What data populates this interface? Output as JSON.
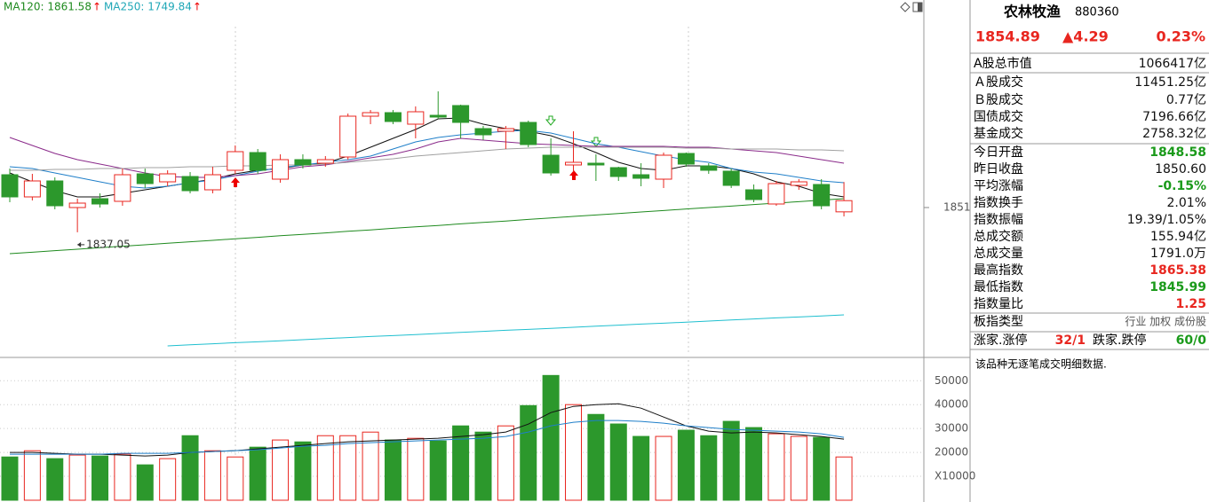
{
  "chart_data": [
    {
      "type": "candlestick",
      "open": [
        1869.5,
        1857,
        1866,
        1851,
        1856,
        1854.5,
        1870,
        1865.5,
        1868.5,
        1861,
        1872,
        1882,
        1867,
        1878,
        1876,
        1879.5,
        1902.5,
        1904.5,
        1898,
        1903,
        1908.5,
        1895.5,
        1894,
        1899,
        1880.5,
        1875,
        1876,
        1873.5,
        1869.5,
        1867,
        1881.5,
        1874.5,
        1871.5,
        1861,
        1853,
        1863.5,
        1864,
        1848.58
      ],
      "high": [
        1873,
        1870,
        1868,
        1856,
        1859,
        1873,
        1873,
        1872,
        1871,
        1874,
        1886,
        1884,
        1881,
        1881,
        1880,
        1904,
        1906,
        1906,
        1908,
        1916.5,
        1909,
        1897,
        1897,
        1900,
        1890,
        1894,
        1881,
        1874,
        1876,
        1882,
        1882,
        1876,
        1873,
        1864,
        1866,
        1867,
        1867,
        1865.38
      ],
      "low": [
        1854,
        1855,
        1850,
        1837.05,
        1851,
        1852,
        1862,
        1863,
        1859,
        1859,
        1870,
        1870,
        1865,
        1873,
        1874,
        1878,
        1898,
        1898,
        1890,
        1901,
        1890,
        1889,
        1884,
        1885,
        1869,
        1871,
        1866,
        1866,
        1863,
        1862,
        1874,
        1870,
        1862,
        1854,
        1852,
        1861,
        1850,
        1845.99
      ],
      "close": [
        1857,
        1866,
        1852,
        1853.5,
        1853,
        1869.5,
        1864.5,
        1870,
        1860.5,
        1869.5,
        1882.5,
        1872,
        1878,
        1875,
        1878,
        1902.5,
        1904.5,
        1899.5,
        1905,
        1902,
        1899,
        1892,
        1895.5,
        1886.5,
        1870.5,
        1876.5,
        1875,
        1868.5,
        1867.5,
        1880.5,
        1875.5,
        1872,
        1863.5,
        1855.5,
        1864.5,
        1865.5,
        1852,
        1854.89
      ],
      "up_color": "#e8261f",
      "down_color": "#2c982c",
      "series": [
        {
          "color": "#111111",
          "values": [
            1870.5,
            1865.5,
            1860.5,
            1857,
            1857,
            1859,
            1861,
            1863,
            1865,
            1867,
            1870,
            1872,
            1873,
            1875,
            1876,
            1880,
            1885,
            1890,
            1895,
            1901,
            1901.5,
            1898,
            1895.5,
            1894,
            1891.5,
            1887,
            1882,
            1876.5,
            1873,
            1872,
            1874.5,
            1874.5,
            1873,
            1870,
            1865.5,
            1863,
            1859,
            1857
          ]
        },
        {
          "color": "#1f7fc9",
          "values": [
            1874,
            1873,
            1870.5,
            1868,
            1865.5,
            1863,
            1862,
            1863,
            1865,
            1866.5,
            1869,
            1871.5,
            1873.5,
            1875,
            1876.5,
            1878,
            1880,
            1884,
            1888,
            1890.5,
            1892,
            1893,
            1894,
            1894.5,
            1893,
            1890,
            1887,
            1885,
            1882.5,
            1880,
            1878,
            1876.5,
            1873,
            1871,
            1870,
            1868,
            1866,
            1865
          ]
        },
        {
          "color": "#8a2a8a",
          "values": [
            1890.5,
            1886,
            1881.5,
            1878,
            1875.5,
            1873,
            1870.5,
            1868.5,
            1868,
            1868,
            1869,
            1870,
            1872,
            1874,
            1875,
            1877,
            1879,
            1881,
            1884,
            1888,
            1890,
            1889,
            1888,
            1887,
            1886.5,
            1886,
            1885.5,
            1885.5,
            1885.5,
            1885.5,
            1885,
            1885,
            1884,
            1883,
            1882,
            1880,
            1878,
            1876
          ]
        },
        {
          "color": "#a0a0a0",
          "values": [
            1872,
            1872,
            1872.5,
            1872.5,
            1873,
            1873,
            1873.5,
            1873.5,
            1874,
            1874,
            1874.5,
            1874.5,
            1875,
            1875,
            1875.5,
            1876.5,
            1877.5,
            1878.5,
            1880,
            1881,
            1882,
            1883,
            1884,
            1884.5,
            1885,
            1885,
            1885,
            1885,
            1885,
            1885,
            1884.5,
            1884.5,
            1884,
            1884,
            1884,
            1883.5,
            1883.5,
            1883
          ]
        },
        {
          "color": "#1e8a1e",
          "values": [
            1825,
            1825.8,
            1826.7,
            1827.5,
            1828.4,
            1829.2,
            1830,
            1830.9,
            1831.7,
            1832.5,
            1833.4,
            1834.2,
            1835.1,
            1835.9,
            1836.7,
            1837.6,
            1838.4,
            1839.3,
            1840.1,
            1840.9,
            1841.8,
            1842.6,
            1843.4,
            1844.3,
            1845.1,
            1846,
            1846.8,
            1847.6,
            1848.5,
            1849.3,
            1850.2,
            1851,
            1851.8,
            1852.7,
            1853.5,
            1854.3,
            1855.2,
            1856
          ]
        },
        {
          "color": "#1fbfcf",
          "values": [
            null,
            null,
            null,
            null,
            null,
            null,
            null,
            1773,
            1773.6,
            1774.2,
            1774.8,
            1775.3,
            1775.9,
            1776.5,
            1777.1,
            1777.7,
            1778.3,
            1778.8,
            1779.4,
            1780,
            1780.6,
            1781.2,
            1781.8,
            1782.3,
            1782.9,
            1783.5,
            1784.1,
            1784.7,
            1785.3,
            1785.8,
            1786.4,
            1787,
            1787.6,
            1788.2,
            1788.8,
            1789.3,
            1789.9,
            1790.5
          ]
        }
      ],
      "ylim": [
        1768,
        1958
      ],
      "yticks": [
        1851
      ]
    },
    {
      "type": "bar",
      "values": [
        18100,
        20700,
        17400,
        18900,
        18500,
        19300,
        14800,
        17400,
        27000,
        20700,
        18100,
        22200,
        25200,
        24400,
        27000,
        27000,
        28500,
        25200,
        25900,
        24800,
        31100,
        28500,
        31100,
        39600,
        52200,
        40000,
        35900,
        31900,
        26700,
        26700,
        29300,
        27000,
        33000,
        30400,
        27800,
        26700,
        26300,
        18100
      ],
      "series": [
        {
          "color": "#111111",
          "values": [
            20000,
            20000,
            19630,
            19260,
            19260,
            18890,
            18520,
            18890,
            20000,
            20370,
            20740,
            21480,
            22220,
            22960,
            23700,
            24440,
            24810,
            25190,
            25560,
            25930,
            26670,
            27410,
            28520,
            31850,
            36670,
            39260,
            40000,
            40370,
            38520,
            34810,
            31110,
            28890,
            28150,
            28520,
            28150,
            27410,
            26670,
            25560
          ]
        },
        {
          "color": "#1f7fc9",
          "values": [
            19260,
            19260,
            19260,
            19260,
            19260,
            19630,
            19630,
            19630,
            20000,
            20370,
            20740,
            21110,
            21850,
            22590,
            22960,
            23700,
            24070,
            24440,
            24810,
            25190,
            25560,
            25930,
            26670,
            28520,
            31110,
            32590,
            33330,
            33330,
            32960,
            32220,
            31110,
            30370,
            29630,
            29260,
            28890,
            28520,
            27780,
            26300
          ]
        }
      ],
      "ylim": [
        0,
        59000
      ],
      "yticks": [
        {
          "value": 10000,
          "label": "X10000"
        },
        20000,
        30000,
        40000,
        50000
      ],
      "grid": true
    }
  ],
  "ma_legend": [
    {
      "label": "MA120: 1861.58",
      "arrow": "↑",
      "color": "#1e8a1e"
    },
    {
      "label": "MA250: 1749.84",
      "arrow": "↑",
      "color": "#1fa7b7"
    }
  ],
  "side_panel": {
    "title": "农林牧渔",
    "code": "880360",
    "price": "1854.89",
    "change": "▲4.29",
    "change_pct": "0.23%",
    "rows": [
      {
        "label": "A股总市值",
        "value": "1066417亿"
      },
      {
        "label": "Ａ股成交",
        "value": "11451.25亿"
      },
      {
        "label": "Ｂ股成交",
        "value": "0.77亿"
      },
      {
        "label": "国债成交",
        "value": "7196.66亿"
      },
      {
        "label": "基金成交",
        "value": "2758.32亿"
      },
      {
        "label": "今日开盘",
        "value": "1848.58",
        "color": "#1a9a1a"
      },
      {
        "label": "昨日收盘",
        "value": "1850.60"
      },
      {
        "label": "平均涨幅",
        "value": "-0.15%",
        "color": "#1a9a1a"
      },
      {
        "label": "指数换手",
        "value": "2.01%"
      },
      {
        "label": "指数振幅",
        "value": "19.39/1.05%"
      },
      {
        "label": "总成交额",
        "value": "155.94亿"
      },
      {
        "label": "总成交量",
        "value": "1791.0万"
      },
      {
        "label": "最高指数",
        "value": "1865.38",
        "color": "#e8261f"
      },
      {
        "label": "最低指数",
        "value": "1845.99",
        "color": "#1a9a1a"
      },
      {
        "label": "指数量比",
        "value": "1.25",
        "color": "#e8261f"
      },
      {
        "label": "板指类型",
        "value": "行业 加权 成份股",
        "color": "#555555"
      }
    ],
    "breadth": {
      "up_label": "涨家.涨停",
      "up_value": "32/1",
      "down_label": "跌家.跌停",
      "down_value": "60/0"
    },
    "note": "该品种无逐笔成交明细数据."
  }
}
